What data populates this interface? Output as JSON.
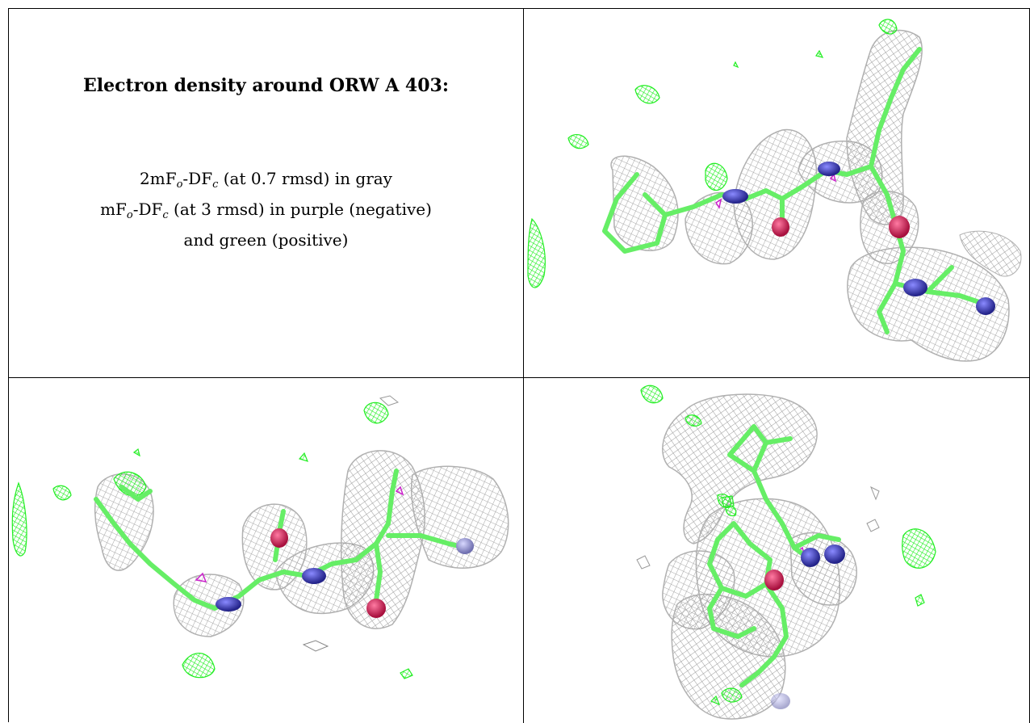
{
  "header": {
    "title": "Electron density around ORW A 403:"
  },
  "legend": {
    "line1_prefix": "2mF",
    "line1_sub1": "o",
    "line1_mid": "-DF",
    "line1_sub2": "c",
    "line1_suffix": " (at 0.7 rmsd) in gray",
    "line2_prefix": "mF",
    "line2_sub1": "o",
    "line2_mid": "-DF",
    "line2_sub2": "c",
    "line2_suffix": " (at 3 rmsd) in purple (negative)",
    "line3": "and green (positive)"
  },
  "colors": {
    "mesh_gray": "#b4b4b4",
    "mesh_positive": "#22ee22",
    "mesh_negative": "#cc22cc",
    "carbon_stick": "#66ee66",
    "nitrogen": "#3a3ab8",
    "oxygen": "#d8225a",
    "chlorine": "#9a9ad8"
  },
  "views": [
    {
      "name": "density-view-1"
    },
    {
      "name": "density-view-2"
    },
    {
      "name": "density-view-3"
    }
  ]
}
